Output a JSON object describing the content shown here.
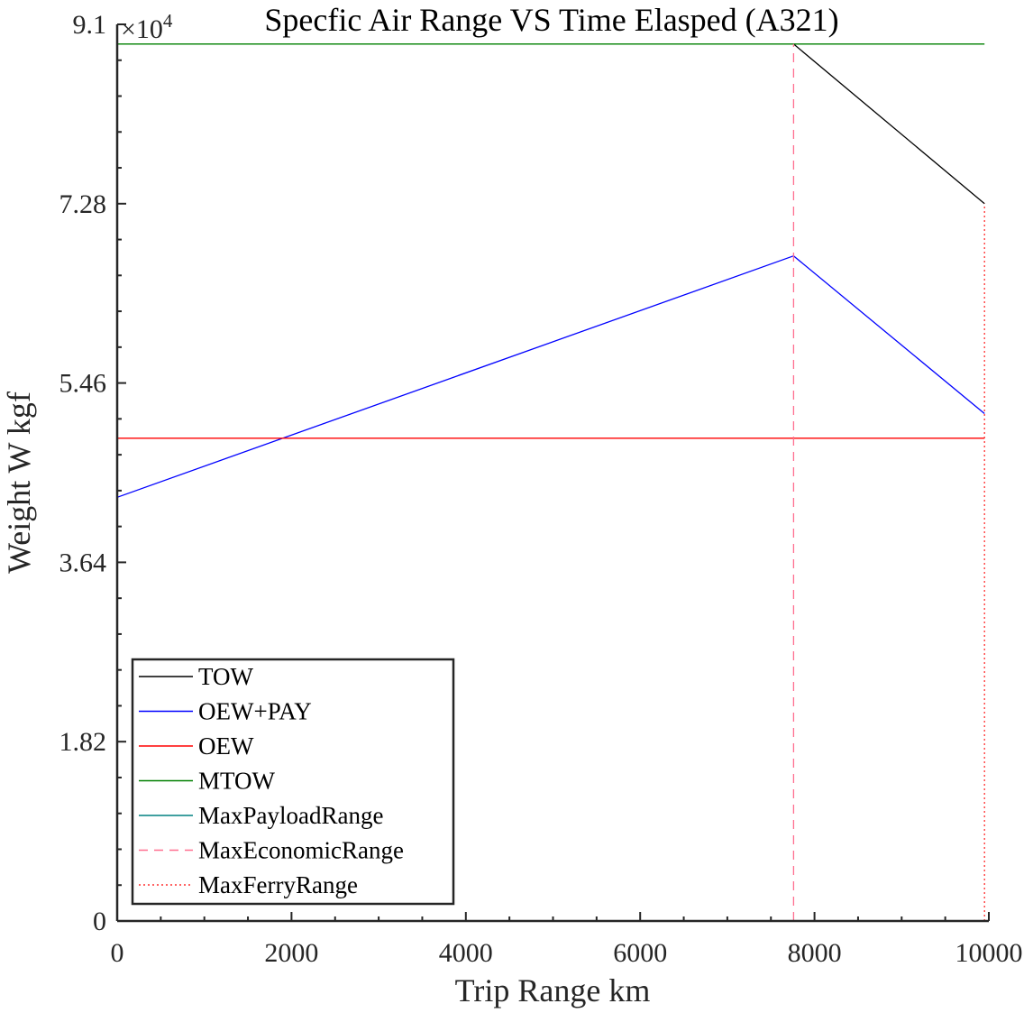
{
  "chart_data": {
    "type": "line",
    "title": "Specfic Air Range VS Time Elasped (A321)",
    "xlabel": "Trip Range km",
    "ylabel": "Weight W kgf",
    "y_exponent_label": "×10",
    "y_exponent_power": "4",
    "xlim": [
      0,
      10000
    ],
    "ylim": [
      0,
      91000
    ],
    "x_ticks": [
      0,
      2000,
      4000,
      6000,
      8000,
      10000
    ],
    "x_tick_labels": [
      "0",
      "2000",
      "4000",
      "6000",
      "8000",
      "10000"
    ],
    "y_ticks": [
      0,
      18200,
      36400,
      54600,
      72800,
      91000
    ],
    "y_tick_labels": [
      "0",
      "1.82",
      "3.64",
      "5.46",
      "7.28",
      "9.1"
    ],
    "grid": false,
    "legend_position": "bottom-left",
    "series": [
      {
        "name": "TOW",
        "color": "#000000",
        "style": "solid",
        "x": [
          7760,
          9950
        ],
        "y": [
          89000,
          72800
        ]
      },
      {
        "name": "OEW+PAY",
        "color": "#0000ff",
        "style": "solid",
        "x": [
          0,
          7760,
          9950
        ],
        "y": [
          43000,
          67500,
          51500
        ]
      },
      {
        "name": "OEW",
        "color": "#ff0000",
        "style": "solid",
        "x": [
          0,
          9950
        ],
        "y": [
          49000,
          49000
        ]
      },
      {
        "name": "MTOW",
        "color": "#008000",
        "style": "solid",
        "x": [
          0,
          9950
        ],
        "y": [
          89000,
          89000
        ]
      },
      {
        "name": "MaxPayloadRange",
        "color": "#008080",
        "style": "solid",
        "x": [],
        "y": []
      },
      {
        "name": "MaxEconomicRange",
        "color": "#ff6f8f",
        "style": "dashed",
        "x": [
          7760,
          7760
        ],
        "y": [
          0,
          89000
        ]
      },
      {
        "name": "MaxFerryRange",
        "color": "#ff3030",
        "style": "dotted",
        "x": [
          9950,
          9950
        ],
        "y": [
          0,
          72800
        ]
      }
    ]
  }
}
